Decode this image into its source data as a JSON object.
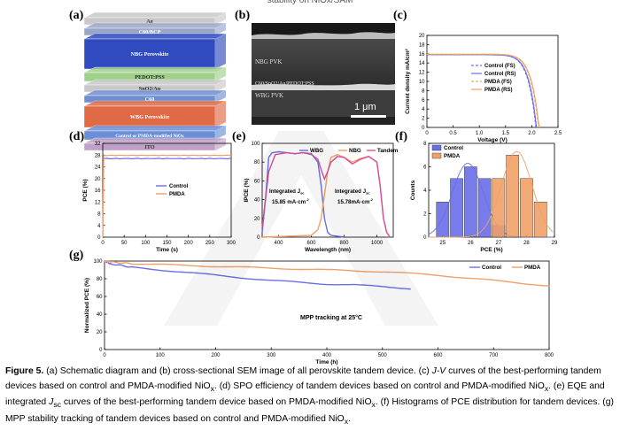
{
  "header_fragment": "stability on NiOx/SAM",
  "panels": {
    "a": {
      "label": "(a)",
      "layers": [
        "Ag",
        "C60/BCP",
        "NBG Perovskite",
        "PEDOT:PSS",
        "SnO2/Au",
        "C60",
        "WBG Perovskite",
        "Control or PMDA-modified NiOx",
        "ITO"
      ]
    },
    "b": {
      "label": "(b)",
      "texts": [
        "NBG PVK",
        "C60/SnO2/Au/PEDOT:PSS",
        "WBG PVK"
      ],
      "scale_bar": "1 μm"
    },
    "c": {
      "label": "(c)"
    },
    "d": {
      "label": "(d)"
    },
    "e": {
      "label": "(e)",
      "integrated_label": "Integrated J",
      "sc_sub": "sc",
      "integrated_1": "15.85 mA·cm",
      "integrated_2": "15.78mA·cm",
      "minus2": "-2"
    },
    "f": {
      "label": "(f)"
    },
    "g": {
      "label": "(g)",
      "annotation": "MPP tracking at 25°C"
    }
  },
  "colors": {
    "control": "#6a6ee8",
    "pmda": "#f0a068",
    "wbg": "#6a6ee8",
    "nbg": "#f0a068",
    "tandem": "#d94f9c"
  },
  "chart_data": [
    {
      "id": "c",
      "type": "line",
      "xlabel": "Voltage (V)",
      "ylabel": "Current density mA/cm²",
      "xlim": [
        0,
        2.5
      ],
      "ylim": [
        0,
        20
      ],
      "xticks": [
        "0",
        "0.5",
        "1.0",
        "1.5",
        "2.0",
        "2.5"
      ],
      "yticks": [
        "0",
        "2",
        "4",
        "6",
        "8",
        "10",
        "12",
        "14",
        "16",
        "18",
        "20"
      ],
      "series": [
        {
          "name": "Control (FS)",
          "jsc": 15.8,
          "voc": 2.08
        },
        {
          "name": "Control (RS)",
          "jsc": 15.8,
          "voc": 2.09
        },
        {
          "name": "PMDA (FS)",
          "jsc": 15.9,
          "voc": 2.13
        },
        {
          "name": "PMDA (RS)",
          "jsc": 15.9,
          "voc": 2.14
        }
      ]
    },
    {
      "id": "d",
      "type": "line",
      "xlabel": "Time (s)",
      "ylabel": "PCE (%)",
      "xlim": [
        0,
        300
      ],
      "ylim": [
        0,
        32
      ],
      "xticks": [
        "0",
        "50",
        "100",
        "150",
        "200",
        "250",
        "300"
      ],
      "yticks": [
        "0",
        "4",
        "8",
        "12",
        "16",
        "20",
        "24",
        "28",
        "32"
      ],
      "series": [
        {
          "name": "Control",
          "steady": 26.8
        },
        {
          "name": "PMDA",
          "steady": 27.9
        }
      ]
    },
    {
      "id": "e",
      "type": "line",
      "xlabel": "Wavelength (nm)",
      "ylabel": "IPCE (%)",
      "xlim": [
        300,
        1100
      ],
      "ylim": [
        0,
        100
      ],
      "xticks": [
        "400",
        "600",
        "800",
        "1000"
      ],
      "yticks": [
        "0",
        "20",
        "40",
        "60",
        "80",
        "100"
      ],
      "series": [
        {
          "name": "WBG",
          "x": [
            300,
            320,
            340,
            360,
            400,
            450,
            500,
            550,
            600,
            640,
            660,
            680,
            700,
            720,
            760,
            800
          ],
          "y": [
            5,
            40,
            85,
            90,
            91,
            90,
            89,
            90,
            89,
            80,
            55,
            20,
            5,
            2,
            1,
            0
          ]
        },
        {
          "name": "NBG",
          "x": [
            300,
            600,
            640,
            660,
            680,
            700,
            720,
            760,
            800,
            850,
            900,
            950,
            1000,
            1020,
            1040,
            1060,
            1080
          ],
          "y": [
            0,
            2,
            8,
            20,
            45,
            70,
            85,
            88,
            85,
            80,
            84,
            86,
            80,
            55,
            20,
            5,
            0
          ]
        },
        {
          "name": "Tandem",
          "x": [
            300,
            340,
            380,
            450,
            500,
            550,
            600,
            640,
            660,
            680,
            700,
            720,
            760,
            800,
            850,
            900,
            950,
            1000,
            1020,
            1040,
            1060,
            1080
          ],
          "y": [
            10,
            70,
            88,
            90,
            89,
            90,
            88,
            83,
            72,
            62,
            70,
            80,
            86,
            85,
            78,
            83,
            86,
            80,
            55,
            20,
            5,
            0
          ]
        }
      ]
    },
    {
      "id": "f",
      "type": "bar",
      "xlabel": "PCE (%)",
      "ylabel": "Counts",
      "xlim": [
        24.5,
        29
      ],
      "ylim": [
        0,
        8
      ],
      "xticks": [
        "25",
        "26",
        "27",
        "28",
        "29"
      ],
      "yticks": [
        "0",
        "2",
        "4",
        "6",
        "8"
      ],
      "series": [
        {
          "name": "Control",
          "x": [
            25.0,
            25.5,
            26.0,
            26.5,
            27.0
          ],
          "values": [
            3,
            5,
            6,
            5,
            1
          ]
        },
        {
          "name": "PMDA",
          "x": [
            27.0,
            27.5,
            28.0,
            28.5
          ],
          "values": [
            5,
            7,
            5,
            3
          ]
        }
      ]
    },
    {
      "id": "g",
      "type": "line",
      "xlabel": "Time (h)",
      "ylabel": "Normalized PCE (%)",
      "xlim": [
        0,
        800
      ],
      "ylim": [
        0,
        100
      ],
      "xticks": [
        "0",
        "100",
        "200",
        "300",
        "400",
        "500",
        "600",
        "700",
        "800"
      ],
      "yticks": [
        "0",
        "20",
        "40",
        "60",
        "80",
        "100"
      ],
      "series": [
        {
          "name": "Control",
          "x": [
            0,
            10,
            50,
            100,
            150,
            200,
            250,
            300,
            350,
            400,
            450,
            500,
            550
          ],
          "y": [
            100,
            97,
            93,
            90,
            87,
            84,
            81,
            78,
            76,
            74,
            73,
            71,
            69
          ]
        },
        {
          "name": "PMDA",
          "x": [
            0,
            10,
            50,
            100,
            150,
            200,
            250,
            300,
            350,
            400,
            450,
            500,
            550,
            600,
            650,
            700,
            750,
            800
          ],
          "y": [
            100,
            99,
            97,
            96,
            95,
            94,
            93,
            92,
            91,
            90,
            89,
            88,
            86,
            84,
            81,
            78,
            75,
            72
          ]
        }
      ]
    }
  ],
  "caption": {
    "figure_label": "Figure 5.",
    "part1": " (a) Schematic diagram and (b) cross-sectional SEM image of all perovskite tandem device. (c) ",
    "jv": "J-V",
    "part2": " curves of the best-performing tandem devices based on control and PMDA-modified NiO",
    "sub_x": "x",
    "part3": ". (d) SPO efficiency of tandem devices based on control and PMDA-modified NiO",
    "part4": ". (e) EQE and integrated ",
    "jsc_j": "J",
    "jsc_sub": "sc",
    "part5": " curves of the best-performing tandem device based on PMDA-modified NiO",
    "part6": ". (f) Histograms of PCE distribution for tandem devices. (g) MPP stability tracking of tandem devices based on control and PMDA-modified NiO",
    "part7": "."
  }
}
